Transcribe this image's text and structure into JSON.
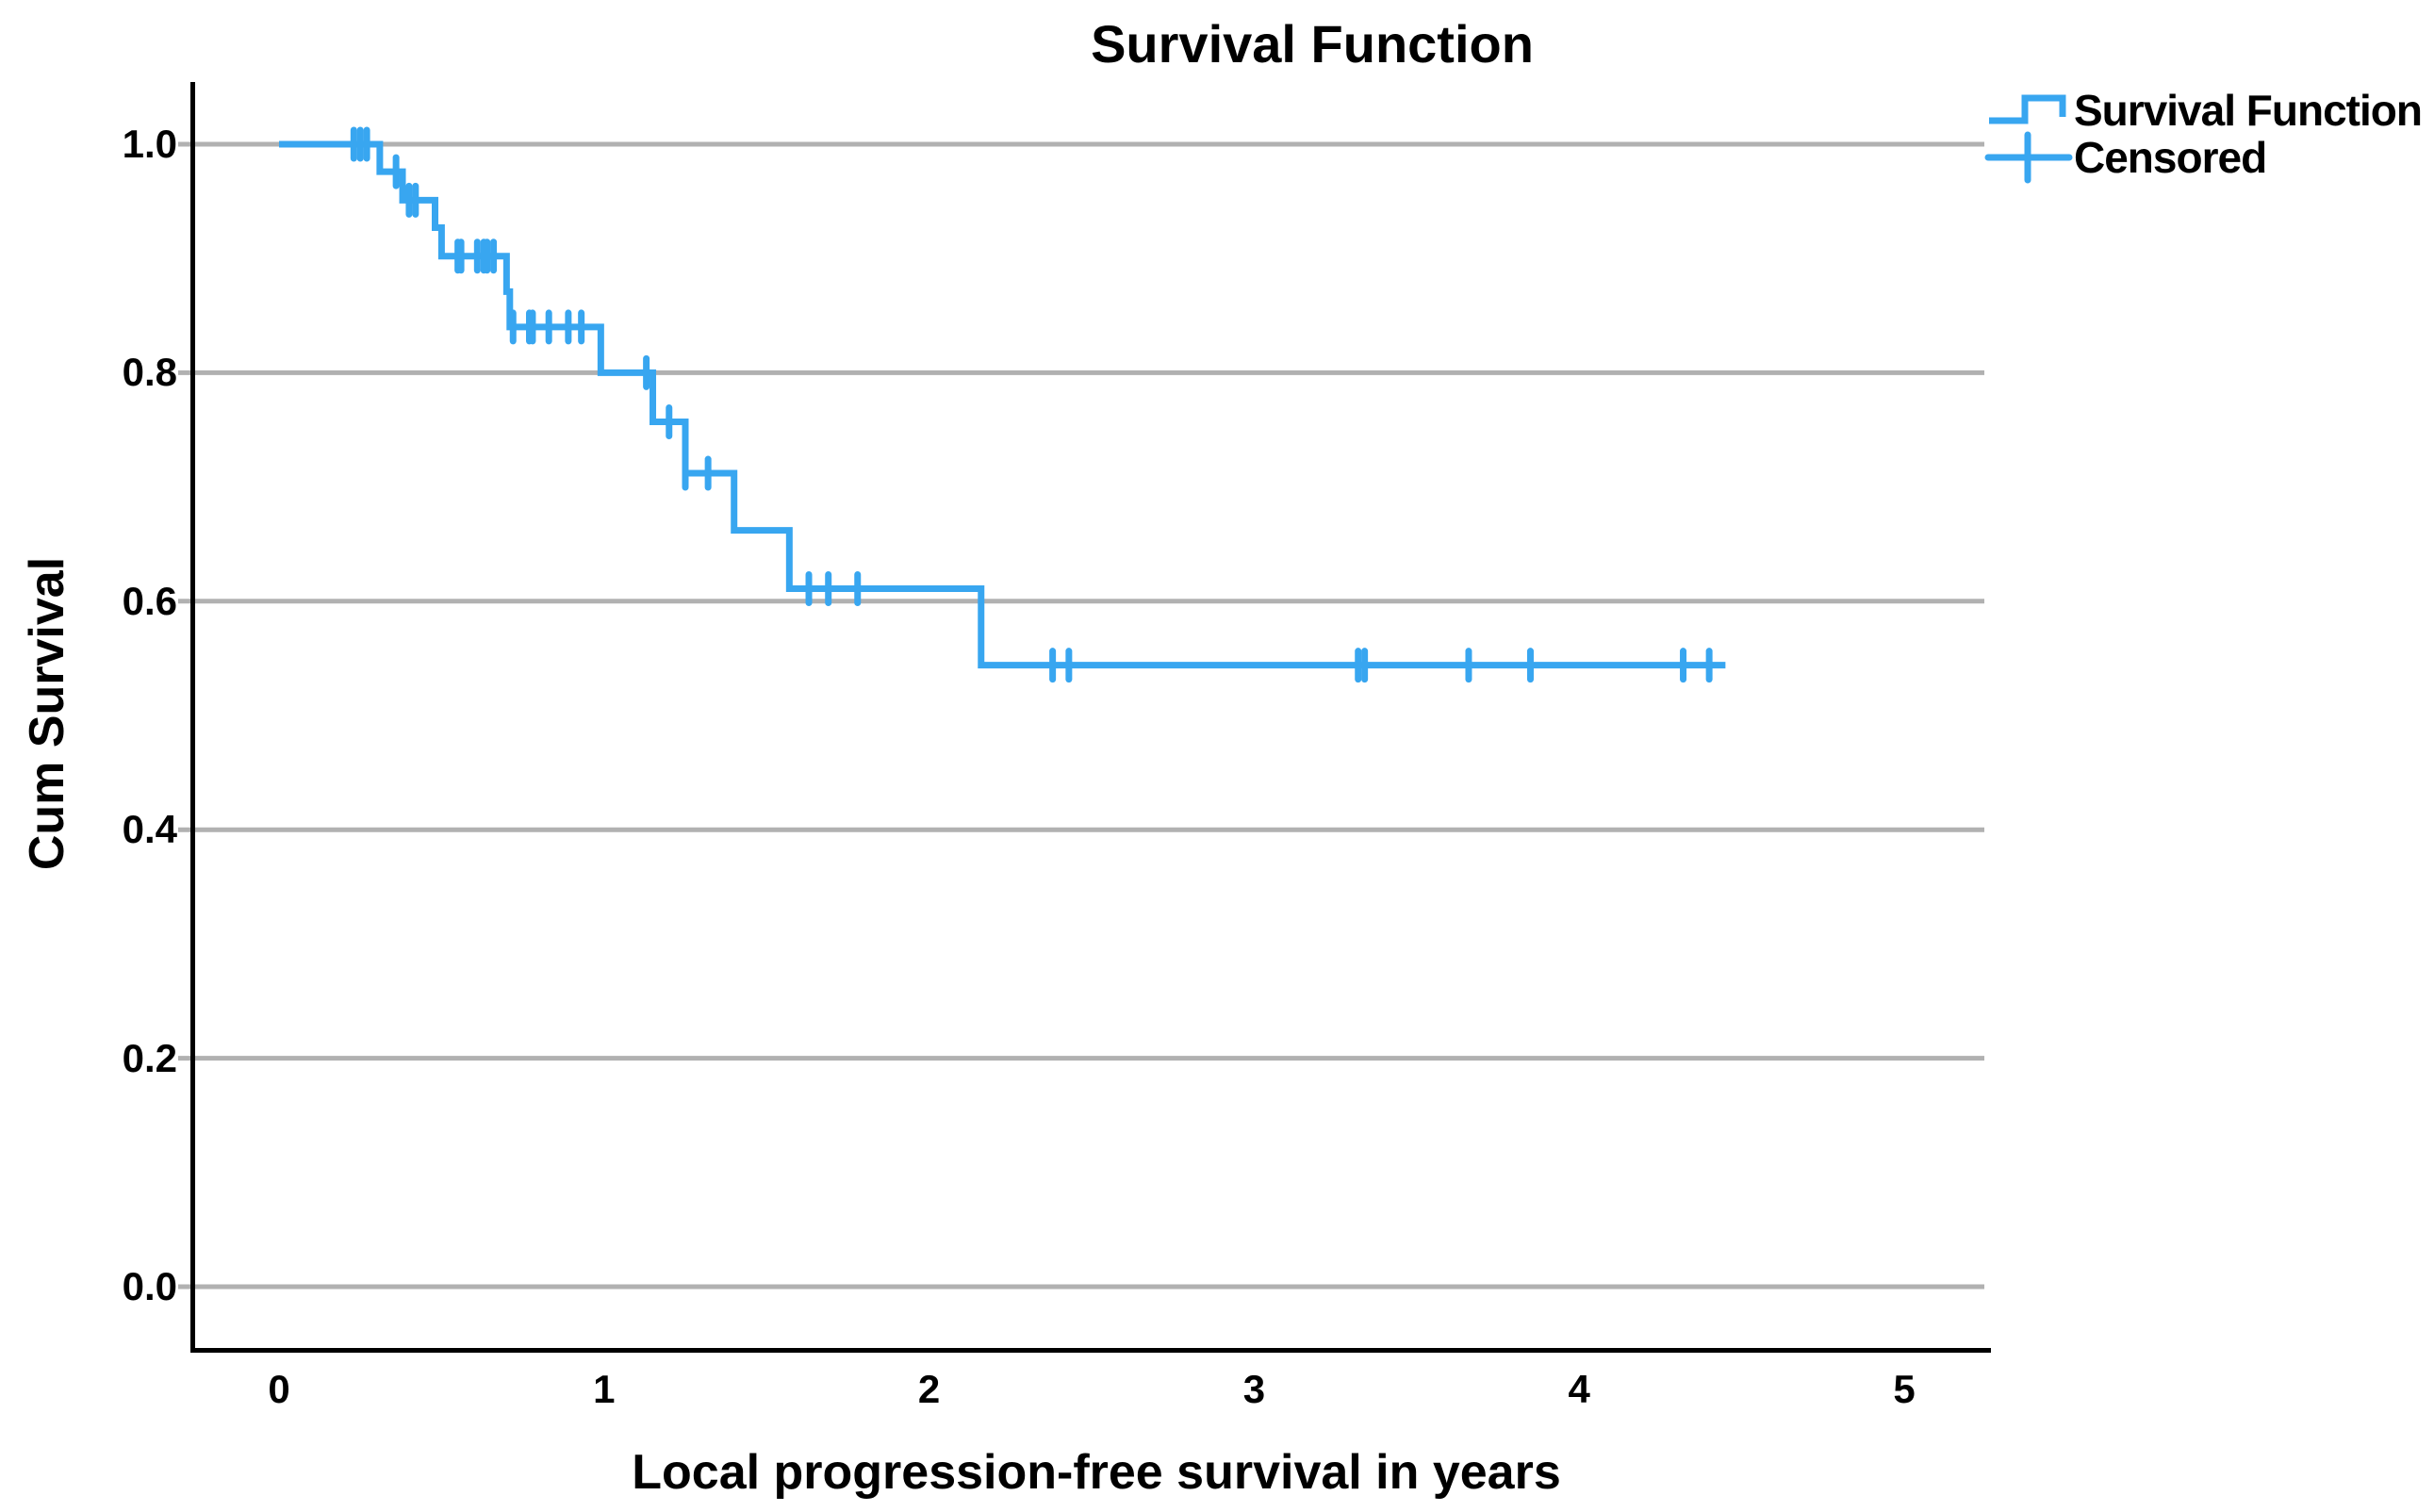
{
  "title": "Survival Function",
  "legend": {
    "items": [
      {
        "label": "Survival Function",
        "marker": "step-line-icon"
      },
      {
        "label": "Censored",
        "marker": "plus-icon"
      }
    ]
  },
  "axes": {
    "x": {
      "label": "Local progression-free survival in years",
      "tick_labels": [
        "0",
        "1",
        "2",
        "3",
        "4",
        "5"
      ],
      "range": [
        0,
        5
      ]
    },
    "y": {
      "label": "Cum Survival",
      "tick_labels": [
        "0.0",
        "0.2",
        "0.4",
        "0.6",
        "0.8",
        "1.0"
      ],
      "range": [
        0.0,
        1.0
      ]
    }
  },
  "colors": {
    "curve": "#38a6f0",
    "grid": "#b1b1b1",
    "axis": "#000000",
    "text": "#000000",
    "background": "#ffffff"
  },
  "chart_data": {
    "type": "line",
    "subtype": "kaplan-meier-step",
    "title": "Survival Function",
    "xlabel": "Local progression-free survival in years",
    "ylabel": "Cum Survival",
    "xlim": [
      0,
      5
    ],
    "ylim": [
      0.0,
      1.0
    ],
    "x_ticks": [
      0,
      1,
      2,
      3,
      4,
      5
    ],
    "y_ticks": [
      0.0,
      0.2,
      0.4,
      0.6,
      0.8,
      1.0
    ],
    "grid": "horizontal-only",
    "legend_position": "top-right",
    "series": [
      {
        "name": "Survival Function",
        "steps": [
          {
            "t": 0.0,
            "s": 1.0
          },
          {
            "t": 0.31,
            "s": 0.976
          },
          {
            "t": 0.38,
            "s": 0.951
          },
          {
            "t": 0.48,
            "s": 0.927
          },
          {
            "t": 0.5,
            "s": 0.902
          },
          {
            "t": 0.7,
            "s": 0.871
          },
          {
            "t": 0.71,
            "s": 0.84
          },
          {
            "t": 0.99,
            "s": 0.8
          },
          {
            "t": 1.15,
            "s": 0.757
          },
          {
            "t": 1.25,
            "s": 0.712
          },
          {
            "t": 1.4,
            "s": 0.662
          },
          {
            "t": 1.57,
            "s": 0.611
          },
          {
            "t": 2.16,
            "s": 0.544
          }
        ],
        "end_t": 4.45,
        "censored": [
          {
            "t": 0.23,
            "s": 1.0
          },
          {
            "t": 0.25,
            "s": 1.0
          },
          {
            "t": 0.27,
            "s": 1.0
          },
          {
            "t": 0.36,
            "s": 0.976
          },
          {
            "t": 0.4,
            "s": 0.951
          },
          {
            "t": 0.42,
            "s": 0.951
          },
          {
            "t": 0.55,
            "s": 0.902
          },
          {
            "t": 0.56,
            "s": 0.902
          },
          {
            "t": 0.61,
            "s": 0.902
          },
          {
            "t": 0.63,
            "s": 0.902
          },
          {
            "t": 0.64,
            "s": 0.902
          },
          {
            "t": 0.66,
            "s": 0.902
          },
          {
            "t": 0.72,
            "s": 0.84
          },
          {
            "t": 0.77,
            "s": 0.84
          },
          {
            "t": 0.78,
            "s": 0.84
          },
          {
            "t": 0.83,
            "s": 0.84
          },
          {
            "t": 0.89,
            "s": 0.84
          },
          {
            "t": 0.93,
            "s": 0.84
          },
          {
            "t": 1.13,
            "s": 0.8
          },
          {
            "t": 1.2,
            "s": 0.757
          },
          {
            "t": 1.25,
            "s": 0.712
          },
          {
            "t": 1.32,
            "s": 0.712
          },
          {
            "t": 1.63,
            "s": 0.611
          },
          {
            "t": 1.69,
            "s": 0.611
          },
          {
            "t": 1.78,
            "s": 0.611
          },
          {
            "t": 2.38,
            "s": 0.544
          },
          {
            "t": 2.43,
            "s": 0.544
          },
          {
            "t": 3.32,
            "s": 0.544
          },
          {
            "t": 3.34,
            "s": 0.544
          },
          {
            "t": 3.66,
            "s": 0.544
          },
          {
            "t": 3.85,
            "s": 0.544
          },
          {
            "t": 4.32,
            "s": 0.544
          },
          {
            "t": 4.4,
            "s": 0.544
          }
        ]
      }
    ]
  }
}
